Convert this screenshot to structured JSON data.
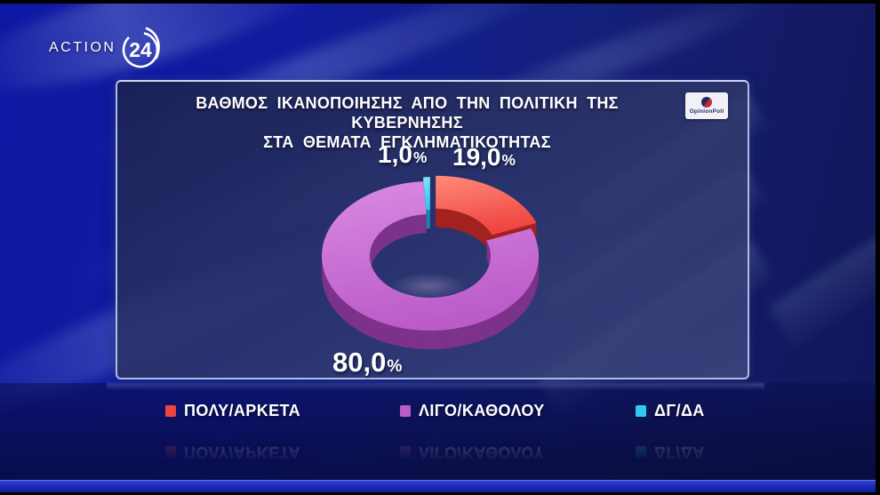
{
  "channel": {
    "name": "ACTION",
    "number": "24"
  },
  "poll_brand": {
    "name": "OpinionPoll"
  },
  "panel": {
    "title_line1": "ΒΑΘΜΟΣ ΙΚΑΝΟΠΟΙΗΣΗΣ ΑΠΟ ΤΗΝ ΠΟΛΙΤΙΚΗ ΤΗΣ ΚΥΒΕΡΝΗΣΗΣ",
    "title_line2": "ΣΤΑ ΘΕΜΑΤΑ ΕΓΚΛΗΜΑΤΙΚΟΤΗΤΑΣ"
  },
  "chart_data": {
    "type": "pie",
    "variant": "3d-exploded-donut",
    "title": "ΒΑΘΜΟΣ ΙΚΑΝΟΠΟΙΗΣΗΣ ΑΠΟ ΤΗΝ ΠΟΛΙΤΙΚΗ ΤΗΣ ΚΥΒΕΡΝΗΣΗΣ ΣΤΑ ΘΕΜΑΤΑ ΕΓΚΛΗΜΑΤΙΚΟΤΗΤΑΣ",
    "unit": "%",
    "decimal_separator": ",",
    "start_angle_deg": 0,
    "legend_position": "bottom",
    "slices": [
      {
        "label": "ΠΟΛΥ/ΑΡΚΕΤΑ",
        "value": 19.0,
        "display": "19,0",
        "color": "#ef4540",
        "color_light": "#ff8a7a",
        "side_color": "#a32221",
        "exploded": true
      },
      {
        "label": "ΛΙΓΟ/ΚΑΘΟΛΟΥ",
        "value": 80.0,
        "display": "80,0",
        "color": "#bc5cc9",
        "color_light": "#d98ae2",
        "side_color": "#7c3389",
        "exploded": false
      },
      {
        "label": "ΔΓ/ΔΑ",
        "value": 1.0,
        "display": "1,0",
        "color": "#30c8f3",
        "color_light": "#8ae6ff",
        "side_color": "#1484b5",
        "exploded": true
      }
    ]
  }
}
